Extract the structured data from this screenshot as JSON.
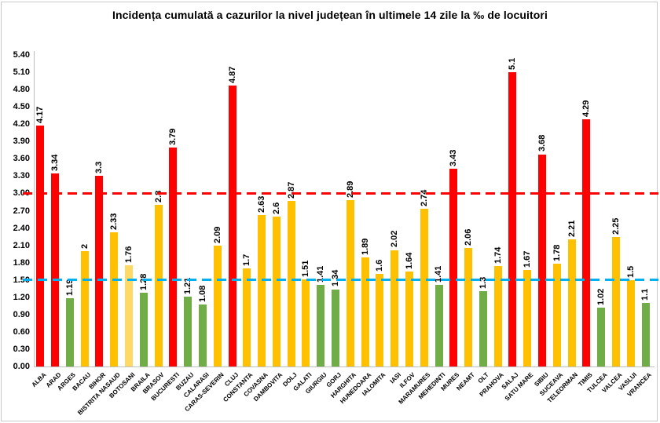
{
  "chart_data": {
    "type": "bar",
    "title": "Incidența cumulată a cazurilor la nivel județean în ultimele 14 zile la ‰ de locuitori",
    "xlabel": "",
    "ylabel": "",
    "ylim": [
      0,
      5.4
    ],
    "ytick_step": 0.3,
    "ytick_format": "two-decimals",
    "grid": false,
    "legend_position": "none",
    "categories": [
      "ALBA",
      "ARAD",
      "ARGES",
      "BACAU",
      "BIHOR",
      "BISTRITA NASAUD",
      "BOTOSANI",
      "BRAILA",
      "BRASOV",
      "BUCURESTI",
      "BUZAU",
      "CALARASI",
      "CARAS-SEVERIN",
      "CLUJ",
      "CONSTANTA",
      "COVASNA",
      "DAMBOVITA",
      "DOLJ",
      "GALATI",
      "GIURGIU",
      "GORJ",
      "HARGHITA",
      "HUNEDOARA",
      "IALOMITA",
      "IASI",
      "ILFOV",
      "MARAMURES",
      "MEHEDINTI",
      "MURES",
      "NEAMT",
      "OLT",
      "PRAHOVA",
      "SALAJ",
      "SATU MARE",
      "SIBIU",
      "SUCEAVA",
      "TELEORMAN",
      "TIMIS",
      "TULCEA",
      "VALCEA",
      "VASLUI",
      "VRANCEA"
    ],
    "values": [
      4.17,
      3.34,
      1.19,
      2,
      3.3,
      2.33,
      1.76,
      1.28,
      2.8,
      3.79,
      1.21,
      1.08,
      2.09,
      4.87,
      1.7,
      2.63,
      2.6,
      2.87,
      1.51,
      1.41,
      1.34,
      2.89,
      1.89,
      1.6,
      2.02,
      1.64,
      2.74,
      1.41,
      3.43,
      2.06,
      1.3,
      1.74,
      5.1,
      1.67,
      3.68,
      1.78,
      2.21,
      4.29,
      1.02,
      2.25,
      1.5,
      1.1
    ],
    "value_labels": [
      "4.17",
      "3.34",
      "1.19",
      "2",
      "3.3",
      "2.33",
      "1.76",
      "1.28",
      "2.8",
      "3.79",
      "1.21",
      "1.08",
      "2.09",
      "4.87",
      "1.7",
      "2.63",
      "2.6",
      "2.87",
      "1.51",
      "1.41",
      "1.34",
      "2.89",
      "1.89",
      "1.6",
      "2.02",
      "1.64",
      "2.74",
      "1.41",
      "3.43",
      "2.06",
      "1.3",
      "1.74",
      "5.1",
      "1.67",
      "3.68",
      "1.78",
      "2.21",
      "4.29",
      "1.02",
      "2.25",
      "1.5",
      "1.1"
    ],
    "bar_bands": [
      "red",
      "red",
      "green",
      "amber",
      "red",
      "amber",
      "amber_light",
      "green",
      "amber",
      "red",
      "green",
      "green",
      "amber",
      "red",
      "amber",
      "amber",
      "amber",
      "amber",
      "amber",
      "green",
      "green",
      "amber",
      "amber",
      "amber",
      "amber",
      "amber",
      "amber",
      "green",
      "red",
      "amber",
      "green",
      "amber",
      "red",
      "amber",
      "red",
      "amber",
      "amber",
      "red",
      "green",
      "amber",
      "amber",
      "green"
    ],
    "band_colors": {
      "red": "#FF0000",
      "amber": "#FFC000",
      "amber_light": "#FFD966",
      "green": "#70AD47"
    },
    "reference_lines": [
      {
        "name": "upper-threshold",
        "value": 3.0,
        "color": "#FF0000",
        "style": "dashed"
      },
      {
        "name": "lower-threshold",
        "value": 1.5,
        "color": "#00B0F0",
        "style": "dashed"
      }
    ],
    "axis_color": "#bfbfbf",
    "text_color": "#000000"
  }
}
